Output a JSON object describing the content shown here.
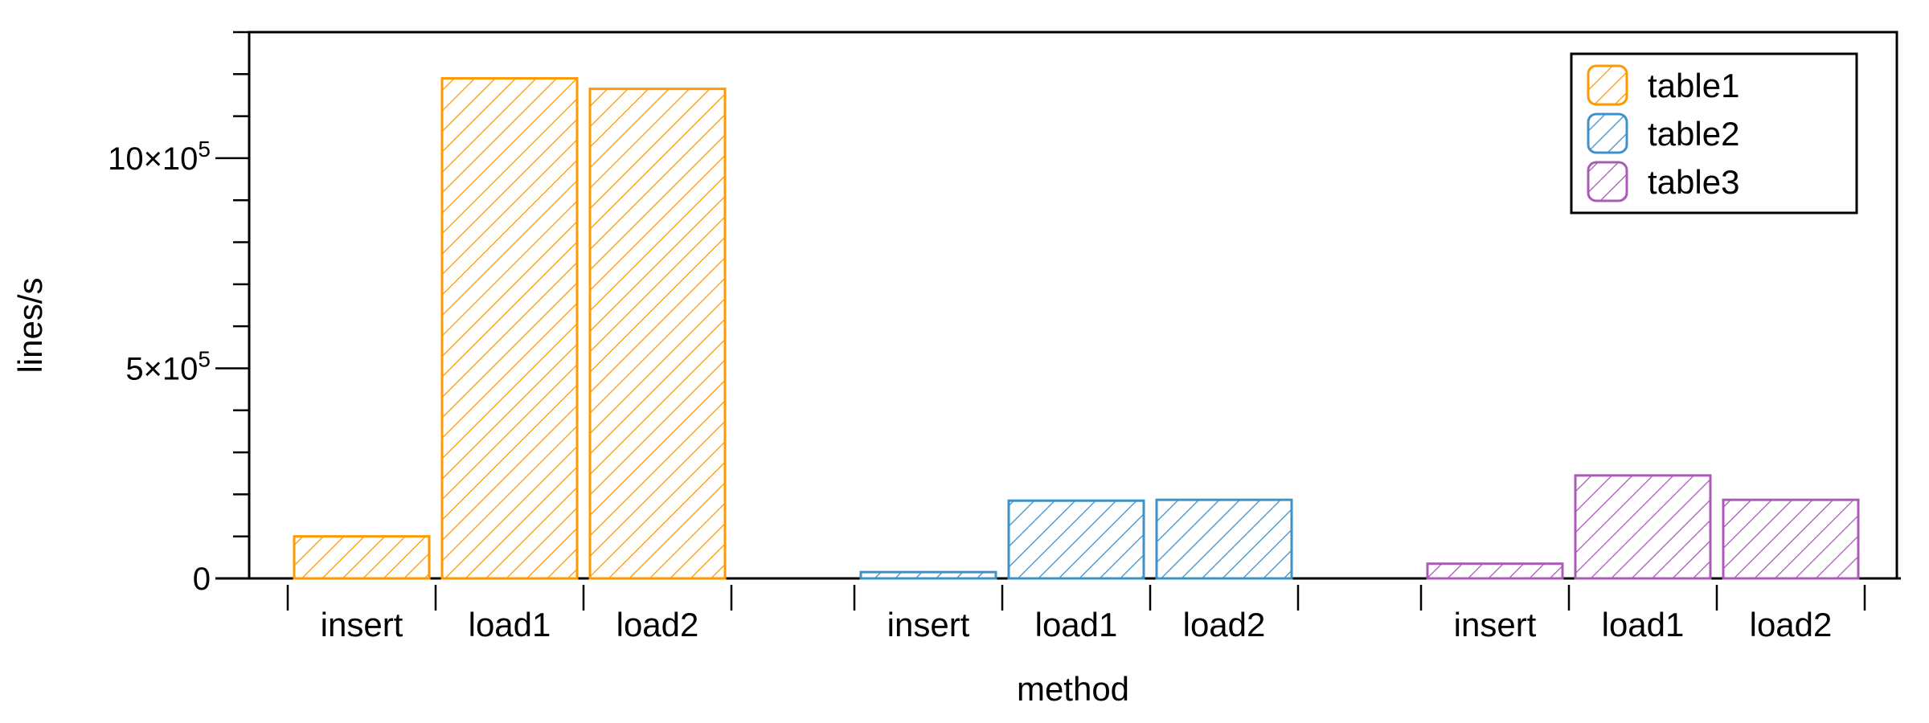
{
  "chart_data": {
    "type": "bar",
    "xlabel": "method",
    "ylabel": "lines/s",
    "ylim": [
      0,
      1300000
    ],
    "yticks": [
      {
        "value": 0,
        "base": "0",
        "exp": ""
      },
      {
        "value": 500000,
        "base": "5×10",
        "exp": "5"
      },
      {
        "value": 1000000,
        "base": "10×10",
        "exp": "5"
      }
    ],
    "yminor_step": 100000,
    "categories": [
      "insert",
      "load1",
      "load2"
    ],
    "series": [
      {
        "name": "table1",
        "color": "#ff9900",
        "values": [
          100000,
          1190000,
          1165000
        ]
      },
      {
        "name": "table2",
        "color": "#3d92c7",
        "values": [
          15000,
          185000,
          187000
        ]
      },
      {
        "name": "table3",
        "color": "#a95bb5",
        "values": [
          35000,
          245000,
          187000
        ]
      }
    ],
    "grid": false,
    "legend": "top-right",
    "fill": "diagonal-hatch"
  }
}
